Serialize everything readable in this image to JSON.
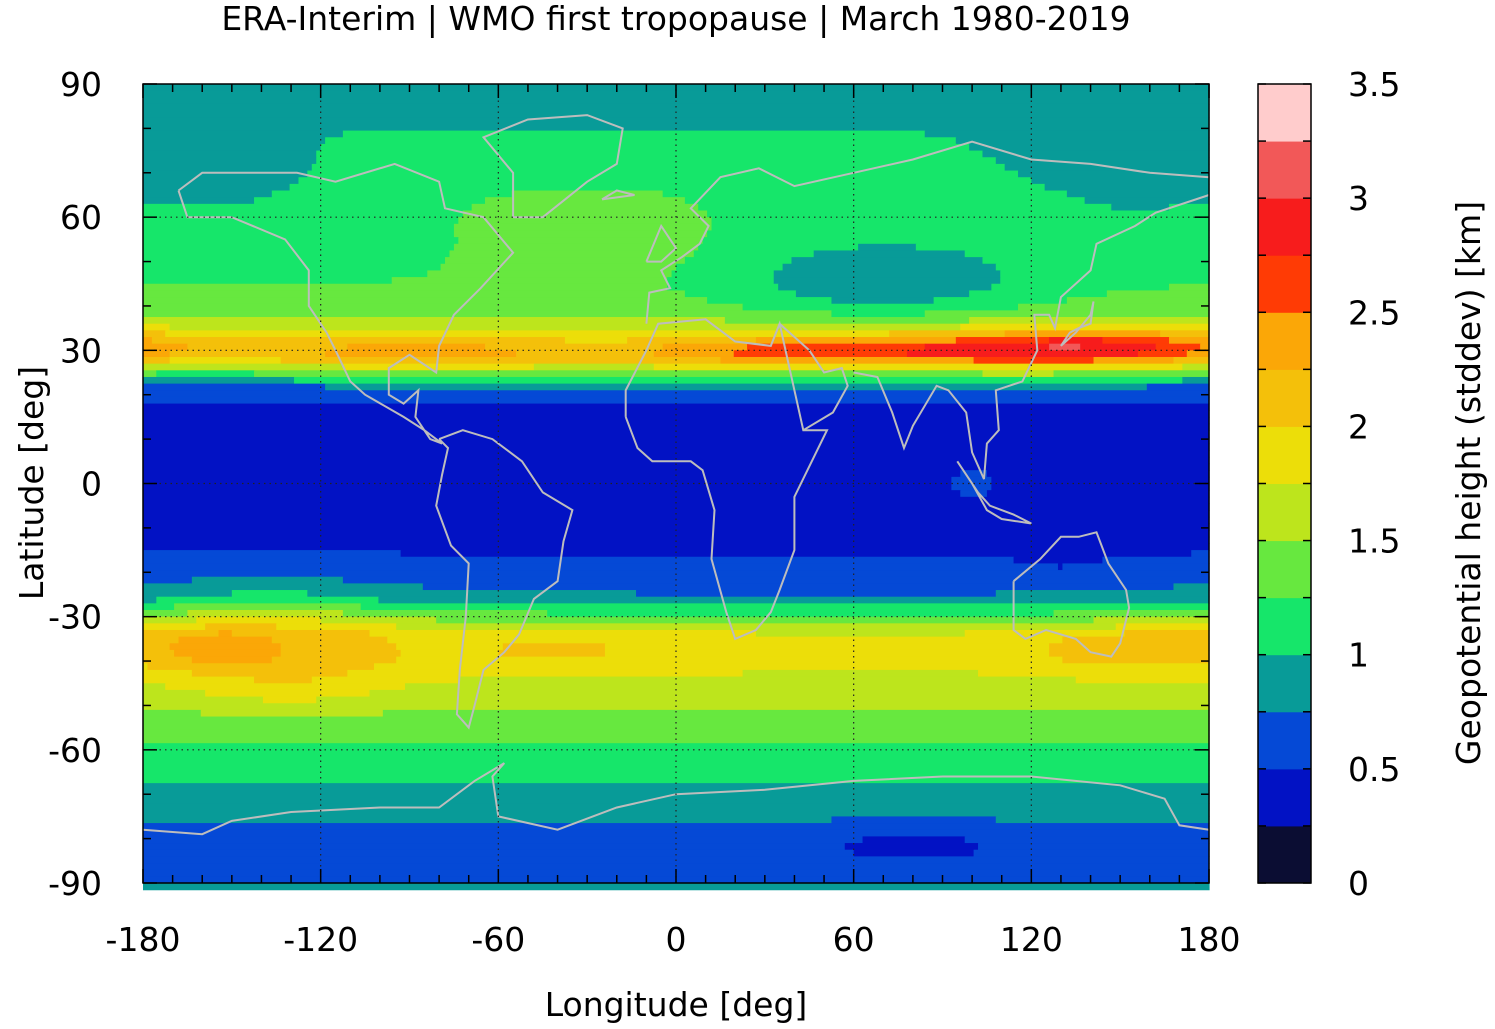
{
  "chart_data": {
    "type": "heatmap",
    "title": "ERA-Interim | WMO first tropopause | March 1980-2019",
    "xlabel": "Longitude [deg]",
    "ylabel": "Latitude [deg]",
    "xlim": [
      -180,
      180
    ],
    "ylim": [
      -90,
      90
    ],
    "x_ticks": [
      "-180",
      "-120",
      "-60",
      "0",
      "60",
      "120",
      "180"
    ],
    "y_ticks": [
      "90",
      "60",
      "30",
      "0",
      "-30",
      "-60",
      "-90"
    ],
    "x_tick_values": [
      -180,
      -120,
      -60,
      0,
      60,
      120,
      180
    ],
    "y_tick_values": [
      90,
      60,
      30,
      0,
      -30,
      -60,
      -90
    ],
    "grid": true,
    "colorbar": {
      "label": "Geopotential height (stddev) [km]",
      "range": [
        0,
        3.5
      ],
      "ticks": [
        "0",
        "0.5",
        "1",
        "1.5",
        "2",
        "2.5",
        "3",
        "3.5"
      ],
      "tick_values": [
        0,
        0.5,
        1,
        1.5,
        2,
        2.5,
        3,
        3.5
      ],
      "levels": [
        {
          "from": 0.0,
          "to": 0.25,
          "color": "#0b0d33"
        },
        {
          "from": 0.25,
          "to": 0.5,
          "color": "#0212c4"
        },
        {
          "from": 0.5,
          "to": 0.75,
          "color": "#0549d6"
        },
        {
          "from": 0.75,
          "to": 1.0,
          "color": "#089b98"
        },
        {
          "from": 1.0,
          "to": 1.25,
          "color": "#16e66a"
        },
        {
          "from": 1.25,
          "to": 1.5,
          "color": "#67e83f"
        },
        {
          "from": 1.5,
          "to": 1.75,
          "color": "#bde51c"
        },
        {
          "from": 1.75,
          "to": 2.0,
          "color": "#ecde09"
        },
        {
          "from": 2.0,
          "to": 2.25,
          "color": "#f4c00a"
        },
        {
          "from": 2.25,
          "to": 2.5,
          "color": "#fba707"
        },
        {
          "from": 2.5,
          "to": 2.75,
          "color": "#ff3b05"
        },
        {
          "from": 2.75,
          "to": 3.0,
          "color": "#f71c1c"
        },
        {
          "from": 3.0,
          "to": 3.25,
          "color": "#f25858"
        },
        {
          "from": 3.25,
          "to": 3.5,
          "color": "#ffcccc"
        }
      ]
    },
    "zonal_profile": {
      "lat": [
        -90,
        -80,
        -72,
        -66,
        -60,
        -54,
        -48,
        -40,
        -34,
        -30,
        -26,
        -20,
        -10,
        0,
        10,
        18,
        22,
        25,
        28,
        30,
        33,
        36,
        40,
        45,
        50,
        55,
        60,
        65,
        70,
        75,
        80,
        90
      ],
      "value": [
        0.6,
        0.6,
        0.9,
        1.05,
        1.2,
        1.35,
        1.6,
        1.8,
        1.75,
        1.3,
        0.8,
        0.55,
        0.4,
        0.38,
        0.4,
        0.5,
        0.8,
        1.5,
        2.2,
        2.35,
        2.0,
        1.6,
        1.35,
        1.25,
        1.2,
        1.15,
        1.15,
        1.15,
        1.1,
        1.05,
        1.0,
        0.95
      ]
    },
    "regional_features": [
      {
        "lon": 80,
        "lat": 30,
        "dlon": 65,
        "dlat": 2.5,
        "amp": 0.45
      },
      {
        "lon": 140,
        "lat": 32,
        "dlon": 30,
        "dlat": 3,
        "amp": 0.5
      },
      {
        "lon": -20,
        "lat": 30,
        "dlon": 25,
        "dlat": 3,
        "amp": -0.25
      },
      {
        "lon": -160,
        "lat": 27,
        "dlon": 25,
        "dlat": 4,
        "amp": -0.3
      },
      {
        "lon": 70,
        "lat": 45,
        "dlon": 35,
        "dlat": 6,
        "amp": -0.45
      },
      {
        "lon": 155,
        "lat": 72,
        "dlon": 30,
        "dlat": 10,
        "amp": -0.25
      },
      {
        "lon": -150,
        "lat": 70,
        "dlon": 18,
        "dlat": 6,
        "amp": -0.25
      },
      {
        "lon": -30,
        "lat": 57,
        "dlon": 30,
        "dlat": 7,
        "amp": 0.3
      },
      {
        "lon": -130,
        "lat": -40,
        "dlon": 25,
        "dlat": 8,
        "amp": 0.35
      },
      {
        "lon": -160,
        "lat": -37,
        "dlon": 15,
        "dlat": 4,
        "amp": 0.3
      },
      {
        "lon": -40,
        "lat": -37,
        "dlon": 35,
        "dlat": 4,
        "amp": 0.25
      },
      {
        "lon": 150,
        "lat": -37,
        "dlon": 25,
        "dlat": 4,
        "amp": 0.35
      },
      {
        "lon": -140,
        "lat": -28,
        "dlon": 35,
        "dlat": 6,
        "amp": 0.25
      },
      {
        "lon": 100,
        "lat": 0,
        "dlon": 10,
        "dlat": 4,
        "amp": 0.15
      },
      {
        "lon": 130,
        "lat": -15,
        "dlon": 7,
        "dlat": 2,
        "amp": -0.2
      },
      {
        "lon": 80,
        "lat": -82,
        "dlon": 25,
        "dlat": 3,
        "amp": -0.15
      }
    ]
  }
}
